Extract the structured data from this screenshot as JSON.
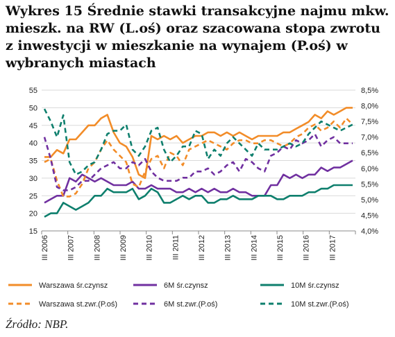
{
  "title": "Wykres 15 Średnie stawki transakcyjne najmu mkw. mieszk. na RW (L.oś) oraz szacowana stopa zwrotu z inwestycji w mieszkanie na wynajem (P.oś) w wybranych miastach",
  "source": "Źródło: NBP.",
  "chart_data": {
    "type": "line",
    "x_tick_labels": [
      "III 2006",
      "III 2007",
      "III 2008",
      "III 2009",
      "III 2010",
      "III 2011",
      "III 2012",
      "III 2013",
      "III 2014",
      "III 2015",
      "III 2016",
      "III 2017"
    ],
    "y_left": {
      "lim": [
        15,
        55
      ],
      "ticks": [
        "15",
        "20",
        "25",
        "30",
        "35",
        "40",
        "45",
        "50",
        "55"
      ]
    },
    "y_right": {
      "lim": [
        4.0,
        8.5
      ],
      "ticks": [
        "4,0%",
        "4,5%",
        "5,0%",
        "5,5%",
        "6,0%",
        "6,5%",
        "7,0%",
        "7,5%",
        "8,0%",
        "8,5%"
      ]
    },
    "grid": true,
    "legend_position": "bottom",
    "series": [
      {
        "name": "Warszawa śr.czynsz",
        "axis": "left",
        "style": "solid",
        "color": "#f28c28",
        "values": [
          36,
          36,
          38,
          37,
          41,
          41,
          43,
          45,
          45,
          47,
          48,
          43,
          40,
          39,
          36,
          31,
          30,
          42,
          41,
          42,
          41,
          42,
          40,
          41,
          42,
          42,
          43,
          43,
          42,
          43,
          42,
          43,
          42,
          41,
          42,
          42,
          42,
          42,
          43,
          43,
          44,
          45,
          46,
          48,
          47,
          49,
          48,
          49,
          50,
          50
        ]
      },
      {
        "name": "6M śr.czynsz",
        "axis": "left",
        "style": "solid",
        "color": "#7030a0",
        "values": [
          23,
          24,
          25,
          25,
          30,
          29,
          31,
          30,
          29,
          30,
          29,
          28,
          28,
          28,
          29,
          27,
          27,
          28,
          27,
          27,
          27,
          26,
          26,
          27,
          26,
          27,
          26,
          27,
          26,
          26,
          27,
          26,
          26,
          25,
          25,
          25,
          28,
          28,
          31,
          30,
          31,
          30,
          31,
          31,
          33,
          32,
          33,
          33,
          34,
          35
        ]
      },
      {
        "name": "10M śr.czynsz",
        "axis": "left",
        "style": "solid",
        "color": "#0e7f6d",
        "values": [
          19,
          20,
          20,
          23,
          22,
          21,
          22,
          23,
          25,
          25,
          27,
          26,
          26,
          26,
          27,
          24,
          25,
          27,
          26,
          23,
          23,
          24,
          25,
          24,
          25,
          25,
          23,
          23,
          24,
          24,
          25,
          24,
          24,
          24,
          25,
          25,
          25,
          24,
          24,
          25,
          25,
          25,
          26,
          26,
          27,
          27,
          28,
          28,
          28,
          28
        ]
      },
      {
        "name": "Warszawa st.zwr.(P.oś)",
        "axis": "right",
        "style": "dashed",
        "color": "#f28c28",
        "values": [
          6.2,
          6.3,
          5.6,
          5.1,
          5.1,
          5.2,
          5.5,
          6.0,
          6.2,
          6.6,
          6.9,
          6.6,
          6.4,
          6.2,
          5.5,
          5.4,
          5.9,
          6.3,
          6.4,
          6.0,
          6.5,
          6.4,
          6.1,
          6.6,
          6.7,
          6.8,
          6.9,
          6.8,
          6.7,
          6.6,
          6.8,
          6.9,
          6.9,
          6.8,
          6.8,
          6.9,
          6.9,
          6.8,
          6.7,
          6.8,
          7.0,
          7.1,
          7.3,
          7.4,
          7.2,
          7.3,
          7.5,
          7.3,
          7.6,
          7.4
        ]
      },
      {
        "name": "6M st.zwr.(P.oś)",
        "axis": "right",
        "style": "dashed",
        "color": "#7030a0",
        "values": [
          7.0,
          6.3,
          5.4,
          5.3,
          5.3,
          5.4,
          5.6,
          5.6,
          5.8,
          6.0,
          6.1,
          6.2,
          6.0,
          6.0,
          6.2,
          6.1,
          6.3,
          5.9,
          5.7,
          5.6,
          5.6,
          5.6,
          5.7,
          5.7,
          5.9,
          5.9,
          6.0,
          5.8,
          5.9,
          6.1,
          6.2,
          5.9,
          6.3,
          6.2,
          6.0,
          5.9,
          6.4,
          6.5,
          6.7,
          6.6,
          6.9,
          6.8,
          6.9,
          7.1,
          6.7,
          6.9,
          7.0,
          6.8,
          6.8,
          6.8
        ]
      },
      {
        "name": "10M st.zwr.(P.oś)",
        "axis": "right",
        "style": "dashed",
        "color": "#0e7f6d",
        "values": [
          7.9,
          7.5,
          7.0,
          7.7,
          6.2,
          5.8,
          5.9,
          6.1,
          6.2,
          6.6,
          7.1,
          7.2,
          7.2,
          7.4,
          6.6,
          6.4,
          6.7,
          7.2,
          7.3,
          6.6,
          6.2,
          6.4,
          6.7,
          6.7,
          7.2,
          7.1,
          6.3,
          6.6,
          6.4,
          6.8,
          7.0,
          6.8,
          6.6,
          6.4,
          6.8,
          6.6,
          6.6,
          6.6,
          6.7,
          6.8,
          6.7,
          6.8,
          7.1,
          7.3,
          7.5,
          7.4,
          7.3,
          7.2,
          7.3,
          7.4
        ]
      }
    ]
  }
}
